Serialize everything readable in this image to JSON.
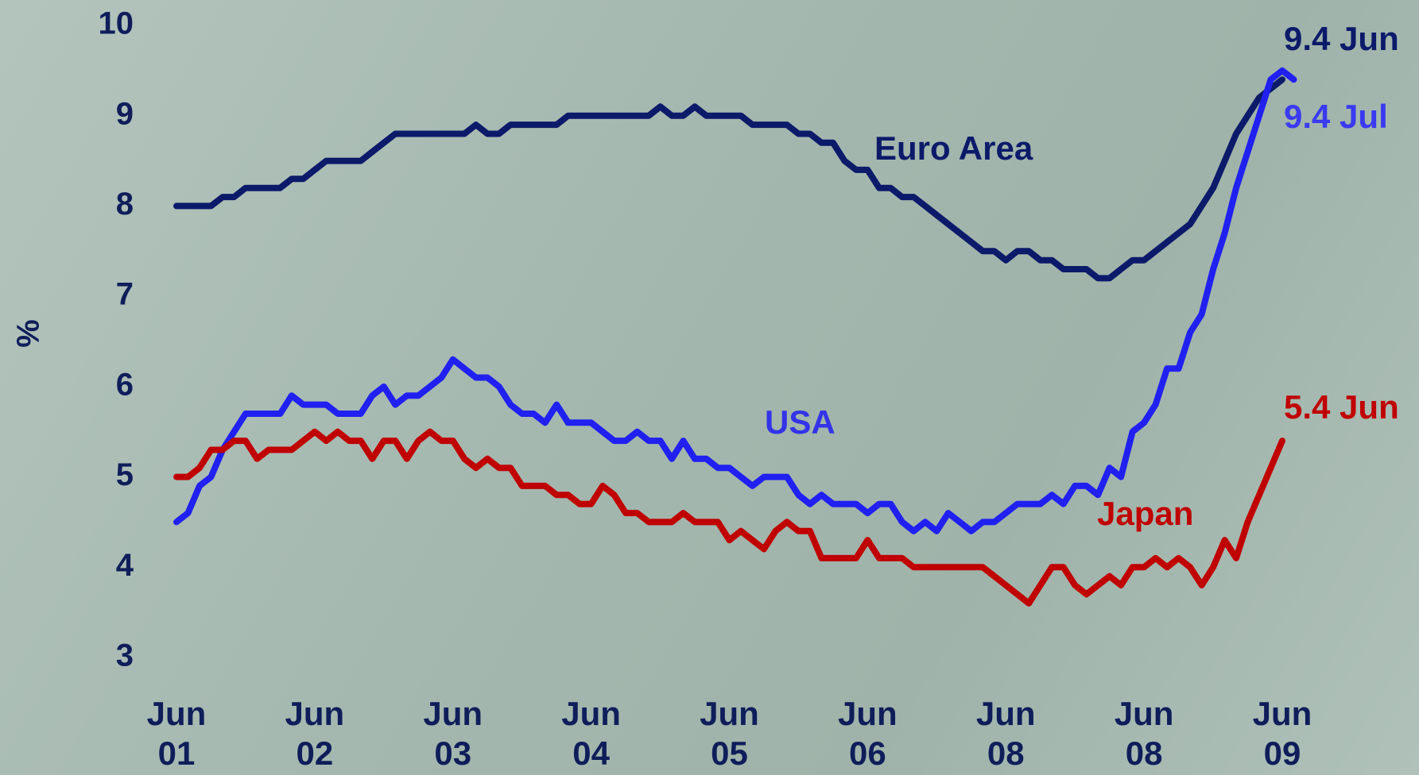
{
  "chart_data": {
    "type": "line",
    "y_label": "%",
    "ylim": [
      3,
      10
    ],
    "yticks": [
      3,
      4,
      5,
      6,
      7,
      8,
      9,
      10
    ],
    "categories": [
      "Jun\n01",
      null,
      null,
      null,
      null,
      null,
      null,
      null,
      null,
      null,
      null,
      null,
      "Jun\n02",
      null,
      null,
      null,
      null,
      null,
      null,
      null,
      null,
      null,
      null,
      null,
      "Jun\n03",
      null,
      null,
      null,
      null,
      null,
      null,
      null,
      null,
      null,
      null,
      null,
      "Jun\n04",
      null,
      null,
      null,
      null,
      null,
      null,
      null,
      null,
      null,
      null,
      null,
      "Jun\n05",
      null,
      null,
      null,
      null,
      null,
      null,
      null,
      null,
      null,
      null,
      null,
      "Jun\n06",
      null,
      null,
      null,
      null,
      null,
      null,
      null,
      null,
      null,
      null,
      null,
      "Jun\n08",
      null,
      null,
      null,
      null,
      null,
      null,
      null,
      null,
      null,
      null,
      null,
      "Jun\n08",
      null,
      null,
      null,
      null,
      null,
      null,
      null,
      null,
      null,
      null,
      null,
      "Jun\n09",
      null
    ],
    "series": [
      {
        "name": "Euro Area",
        "color": "#0c1a6a",
        "values": [
          8.0,
          8.0,
          8.0,
          8.0,
          8.1,
          8.1,
          8.2,
          8.2,
          8.2,
          8.2,
          8.3,
          8.3,
          8.4,
          8.5,
          8.5,
          8.5,
          8.5,
          8.6,
          8.7,
          8.8,
          8.8,
          8.8,
          8.8,
          8.8,
          8.8,
          8.8,
          8.9,
          8.8,
          8.8,
          8.9,
          8.9,
          8.9,
          8.9,
          8.9,
          9.0,
          9.0,
          9.0,
          9.0,
          9.0,
          9.0,
          9.0,
          9.0,
          9.1,
          9.0,
          9.0,
          9.1,
          9.0,
          9.0,
          9.0,
          9.0,
          8.9,
          8.9,
          8.9,
          8.9,
          8.8,
          8.8,
          8.7,
          8.7,
          8.5,
          8.4,
          8.4,
          8.2,
          8.2,
          8.1,
          8.1,
          8.0,
          7.9,
          7.8,
          7.7,
          7.6,
          7.5,
          7.5,
          7.4,
          7.5,
          7.5,
          7.4,
          7.4,
          7.3,
          7.3,
          7.3,
          7.2,
          7.2,
          7.3,
          7.4,
          7.4,
          7.5,
          7.6,
          7.7,
          7.8,
          8.0,
          8.2,
          8.5,
          8.8,
          9.0,
          9.2,
          9.3,
          9.4,
          null
        ]
      },
      {
        "name": "USA",
        "color": "#2020f0",
        "values": [
          4.5,
          4.6,
          4.9,
          5.0,
          5.3,
          5.5,
          5.7,
          5.7,
          5.7,
          5.7,
          5.9,
          5.8,
          5.8,
          5.8,
          5.7,
          5.7,
          5.7,
          5.9,
          6.0,
          5.8,
          5.9,
          5.9,
          6.0,
          6.1,
          6.3,
          6.2,
          6.1,
          6.1,
          6.0,
          5.8,
          5.7,
          5.7,
          5.6,
          5.8,
          5.6,
          5.6,
          5.6,
          5.5,
          5.4,
          5.4,
          5.5,
          5.4,
          5.4,
          5.2,
          5.4,
          5.2,
          5.2,
          5.1,
          5.1,
          5.0,
          4.9,
          5.0,
          5.0,
          5.0,
          4.8,
          4.7,
          4.8,
          4.7,
          4.7,
          4.7,
          4.6,
          4.7,
          4.7,
          4.5,
          4.4,
          4.5,
          4.4,
          4.6,
          4.5,
          4.4,
          4.5,
          4.5,
          4.6,
          4.7,
          4.7,
          4.7,
          4.8,
          4.7,
          4.9,
          4.9,
          4.8,
          5.1,
          5.0,
          5.5,
          5.6,
          5.8,
          6.2,
          6.2,
          6.6,
          6.8,
          7.3,
          7.7,
          8.2,
          8.6,
          9.0,
          9.4,
          9.5,
          9.4
        ]
      },
      {
        "name": "Japan",
        "color": "#c00000",
        "values": [
          5.0,
          5.0,
          5.1,
          5.3,
          5.3,
          5.4,
          5.4,
          5.2,
          5.3,
          5.3,
          5.3,
          5.4,
          5.5,
          5.4,
          5.5,
          5.4,
          5.4,
          5.2,
          5.4,
          5.4,
          5.2,
          5.4,
          5.5,
          5.4,
          5.4,
          5.2,
          5.1,
          5.2,
          5.1,
          5.1,
          4.9,
          4.9,
          4.9,
          4.8,
          4.8,
          4.7,
          4.7,
          4.9,
          4.8,
          4.6,
          4.6,
          4.5,
          4.5,
          4.5,
          4.6,
          4.5,
          4.5,
          4.5,
          4.3,
          4.4,
          4.3,
          4.2,
          4.4,
          4.5,
          4.4,
          4.4,
          4.1,
          4.1,
          4.1,
          4.1,
          4.3,
          4.1,
          4.1,
          4.1,
          4.0,
          4.0,
          4.0,
          4.0,
          4.0,
          4.0,
          4.0,
          3.9,
          3.8,
          3.7,
          3.6,
          3.8,
          4.0,
          4.0,
          3.8,
          3.7,
          3.8,
          3.9,
          3.8,
          4.0,
          4.0,
          4.1,
          4.0,
          4.1,
          4.0,
          3.8,
          4.0,
          4.3,
          4.1,
          4.5,
          4.8,
          5.1,
          5.4,
          null
        ]
      }
    ],
    "annotations": [
      {
        "text": "Euro Area",
        "color": "#0c1a6a"
      },
      {
        "text": "USA",
        "color": "#3333e8"
      },
      {
        "text": "Japan",
        "color": "#c00000"
      },
      {
        "text": "9.4 Jun",
        "color": "#0c1a6a"
      },
      {
        "text": "9.4 Jul",
        "color": "#3a3af0"
      },
      {
        "text": "5.4 Jun",
        "color": "#c00000"
      }
    ]
  }
}
